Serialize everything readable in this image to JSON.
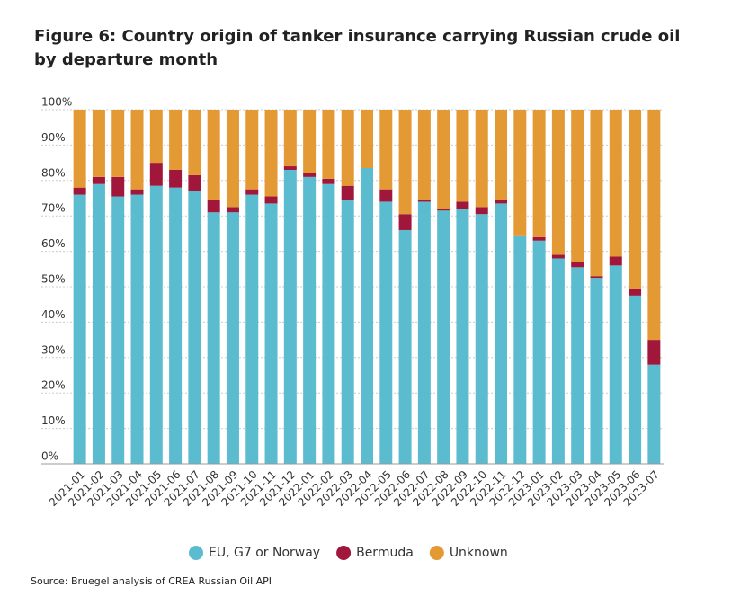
{
  "chart_data": {
    "type": "stacked-bar",
    "title": "Figure 6: Country origin of tanker insurance carrying Russian crude oil by departure month",
    "source": "Source: Bruegel analysis of CREA Russian Oil API",
    "categories": [
      "2021-01",
      "2021-02",
      "2021-03",
      "2021-04",
      "2021-05",
      "2021-06",
      "2021-07",
      "2021-08",
      "2021-09",
      "2021-10",
      "2021-11",
      "2021-12",
      "2022-01",
      "2022-02",
      "2022-03",
      "2022-04",
      "2022-05",
      "2022-06",
      "2022-07",
      "2022-08",
      "2022-09",
      "2022-10",
      "2022-11",
      "2022-12",
      "2023-01",
      "2023-02",
      "2023-03",
      "2023-04",
      "2023-05",
      "2023-06",
      "2023-07"
    ],
    "series": [
      {
        "name": "EU, G7 or Norway",
        "color": "#5bbccf",
        "values": [
          76,
          79,
          75.5,
          76,
          78.5,
          78,
          77,
          71,
          71,
          76,
          73.5,
          83,
          81,
          79,
          74.5,
          83.5,
          74,
          66,
          74,
          71.5,
          72,
          70.5,
          73.5,
          64.5,
          63,
          58,
          55.5,
          52.5,
          56,
          47.5,
          28
        ]
      },
      {
        "name": "Bermuda",
        "color": "#a0173b",
        "values": [
          2,
          2,
          5.5,
          1.5,
          6.5,
          5,
          4.5,
          3.5,
          1.5,
          1.5,
          2,
          1,
          1,
          1.5,
          4,
          0,
          3.5,
          4.5,
          0.5,
          0.5,
          2,
          2,
          1,
          0,
          1,
          1,
          1.5,
          0.5,
          2.5,
          2,
          7
        ]
      },
      {
        "name": "Unknown",
        "color": "#e39a34",
        "values": [
          22,
          19,
          19,
          22.5,
          15,
          17,
          18.5,
          25.5,
          27.5,
          22.5,
          24.5,
          16,
          18,
          19.5,
          21.5,
          16.5,
          22.5,
          29.5,
          25.5,
          28,
          26,
          27.5,
          25.5,
          35.5,
          36,
          41,
          43,
          47,
          41.5,
          50.5,
          65
        ]
      }
    ],
    "ylim": [
      0,
      100
    ],
    "yticks": [
      {
        "value": 0,
        "label": "0%"
      },
      {
        "value": 10,
        "label": "10%"
      },
      {
        "value": 20,
        "label": "20%"
      },
      {
        "value": 30,
        "label": "30%"
      },
      {
        "value": 40,
        "label": "40%"
      },
      {
        "value": 50,
        "label": "50%"
      },
      {
        "value": 60,
        "label": "60%"
      },
      {
        "value": 70,
        "label": "70%"
      },
      {
        "value": 80,
        "label": "80%"
      },
      {
        "value": 90,
        "label": "90%"
      },
      {
        "value": 100,
        "label": "100%"
      }
    ],
    "grid": true,
    "legend": "bottom"
  }
}
